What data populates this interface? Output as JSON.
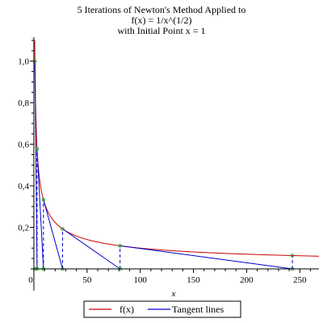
{
  "chart_data": {
    "type": "line",
    "title_lines": [
      "5 Iterations of Newton's Method Applied to",
      "f(x) = 1/x^(1/2)",
      "with Initial Point x = 1"
    ],
    "xlabel": "x",
    "ylabel": "",
    "xlim": [
      -3,
      268
    ],
    "ylim": [
      0,
      1.1
    ],
    "x_ticks": [
      0,
      50,
      100,
      150,
      200,
      250
    ],
    "x_tick_labels": [
      "0",
      "50",
      "100",
      "150",
      "200",
      "250"
    ],
    "y_ticks": [
      0.2,
      0.4,
      0.6,
      0.8,
      1.0
    ],
    "y_tick_labels": [
      "0,2",
      "0,4",
      "0,6",
      "0,8",
      "1,0"
    ],
    "function": "1/sqrt(x)",
    "iterates": [
      1,
      3,
      9,
      27,
      81,
      243
    ],
    "legend_position": "bottom",
    "legend": [
      {
        "label": "f(x)",
        "color": "#cc0000"
      },
      {
        "label": "Tangent lines",
        "color": "#0000cc"
      }
    ],
    "colors": {
      "curve": "#cc0000",
      "tangent": "#0000cc",
      "points": "#22aa22",
      "axes": "#000000"
    }
  }
}
